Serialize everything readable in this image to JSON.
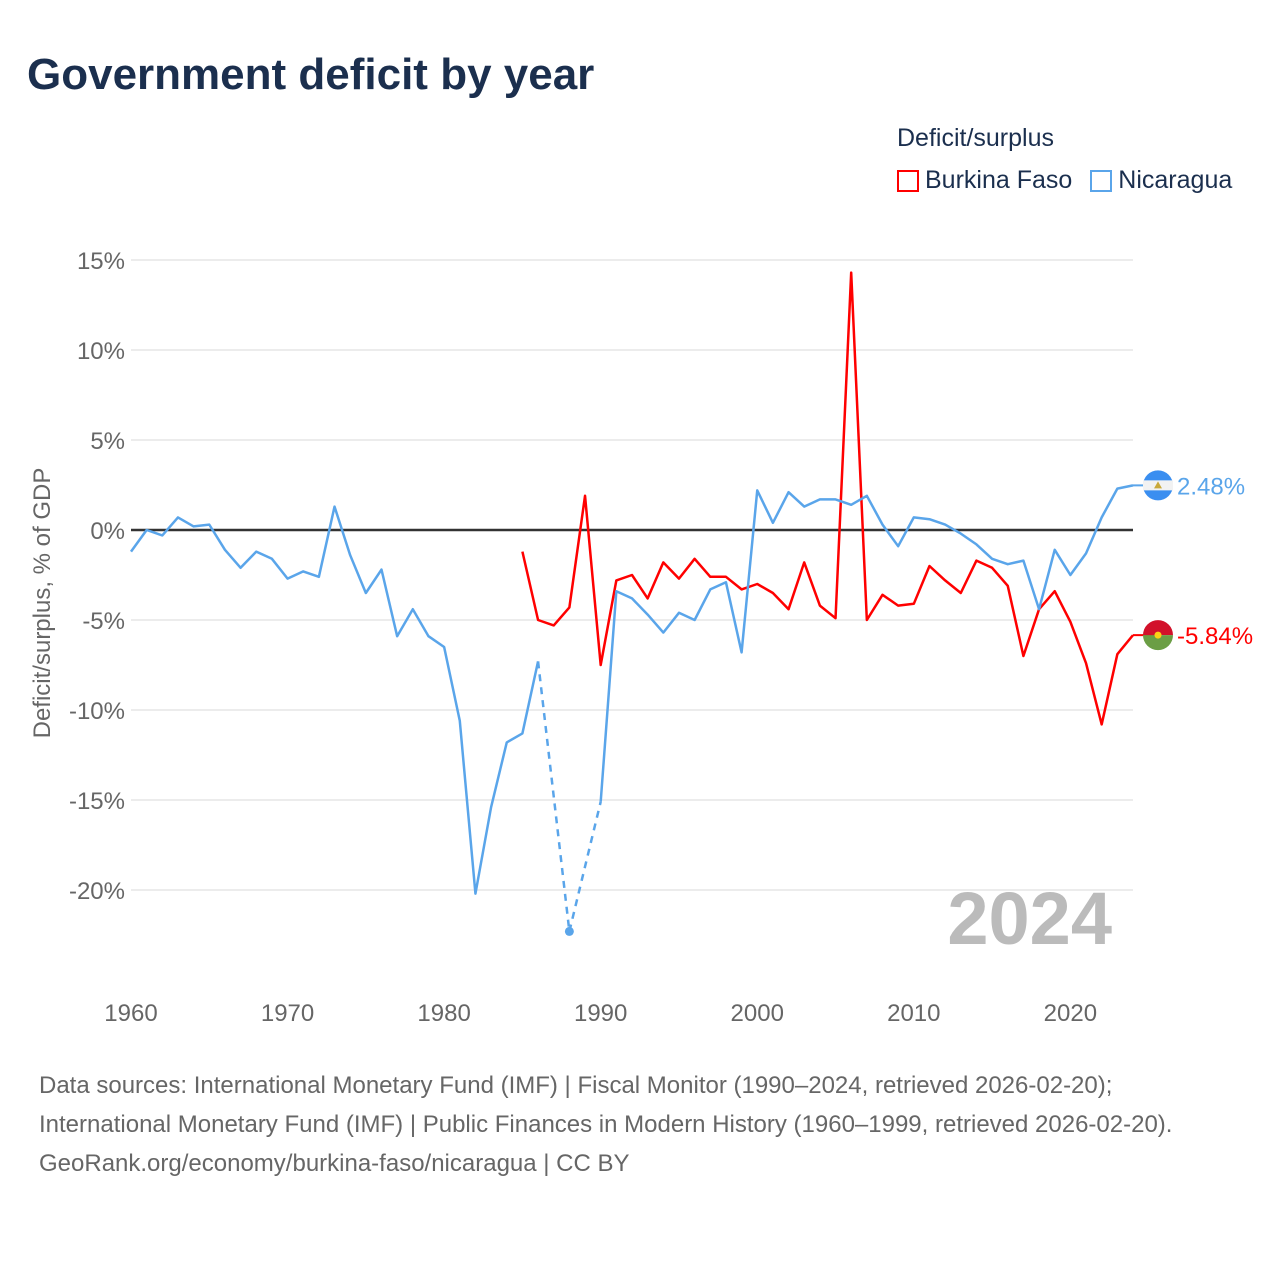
{
  "title": "Government deficit by year",
  "legend": {
    "title": "Deficit/surplus",
    "items": [
      {
        "name": "Burkina Faso",
        "color": "#ff0000"
      },
      {
        "name": "Nicaragua",
        "color": "#5aa5ea"
      }
    ]
  },
  "year_watermark": "2024",
  "footer": {
    "sources": "Data sources: International Monetary Fund (IMF) | Fiscal Monitor (1990–2024, retrieved 2026-02-20); International Monetary Fund (IMF) | Public Finances in Modern History (1960–1999, retrieved 2026-02-20).",
    "credit": "GeoRank.org/economy/burkina-faso/nicaragua | CC BY"
  },
  "chart_data": {
    "type": "line",
    "title": "Government deficit by year",
    "ylabel": "Deficit/surplus, % of GDP",
    "xlabel": "",
    "xlim": [
      1960,
      2024
    ],
    "ylim": [
      -25,
      15
    ],
    "xticks": [
      1960,
      1970,
      1980,
      1990,
      2000,
      2010,
      2020
    ],
    "xtick_labels": [
      "1960",
      "1970",
      "1980",
      "1990",
      "2000",
      "2010",
      "2020"
    ],
    "yticks": [
      15,
      10,
      5,
      0,
      -5,
      -10,
      -15,
      -20
    ],
    "ytick_labels": [
      "15%",
      "10%",
      "5%",
      "0%",
      "-5%",
      "-10%",
      "-15%",
      "-20%"
    ],
    "grid": true,
    "legend_position": "top-right",
    "series": [
      {
        "name": "Burkina Faso",
        "color": "#ff0000",
        "end_label": "-5.84%",
        "start_year": 1985,
        "values": [
          -1.2,
          -5.0,
          -5.3,
          -4.3,
          1.9,
          -7.5,
          -2.8,
          -2.5,
          -3.8,
          -1.8,
          -2.7,
          -1.6,
          -2.6,
          -2.6,
          -3.3,
          -3.0,
          -3.5,
          -4.4,
          -1.8,
          -4.2,
          -4.9,
          14.3,
          -5.0,
          -3.6,
          -4.2,
          -4.1,
          -2.0,
          -2.8,
          -3.5,
          -1.7,
          -2.1,
          -3.1,
          -7.0,
          -4.4,
          -3.4,
          -5.1,
          -7.4,
          -10.8,
          -6.9,
          -5.84
        ]
      },
      {
        "name": "Nicaragua",
        "color": "#5aa5ea",
        "end_label": "2.48%",
        "start_year": 1960,
        "values": [
          -1.2,
          0.0,
          -0.3,
          0.7,
          0.2,
          0.3,
          -1.1,
          -2.1,
          -1.2,
          -1.6,
          -2.7,
          -2.3,
          -2.6,
          1.3,
          -1.4,
          -3.5,
          -2.2,
          -5.9,
          -4.4,
          -5.9,
          -6.5,
          -10.6,
          -20.2,
          -15.4,
          -11.8,
          -11.3,
          -7.3,
          null,
          -22.3,
          null,
          -15.1,
          -3.4,
          -3.8,
          -4.7,
          -5.7,
          -4.6,
          -5.0,
          -3.3,
          -2.9,
          -6.8,
          2.2,
          0.4,
          2.1,
          1.3,
          1.7,
          1.7,
          1.4,
          1.9,
          0.3,
          -0.9,
          0.7,
          0.6,
          0.3,
          -0.2,
          -0.8,
          -1.6,
          -1.9,
          -1.7,
          -4.4,
          -1.1,
          -2.5,
          -1.3,
          0.7,
          2.3,
          2.48
        ]
      }
    ]
  }
}
